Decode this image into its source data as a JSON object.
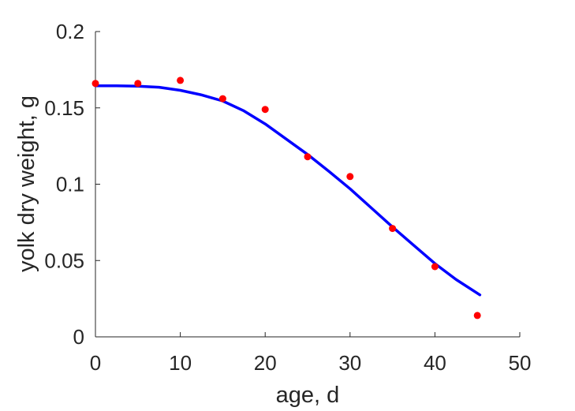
{
  "chart_data": {
    "type": "scatter",
    "title": "",
    "xlabel": "age, d",
    "ylabel": "yolk dry weight, g",
    "xlim": [
      0,
      50
    ],
    "ylim": [
      0,
      0.2
    ],
    "xticks": [
      0,
      10,
      20,
      30,
      40,
      50
    ],
    "xtick_labels": [
      "0",
      "10",
      "20",
      "30",
      "40",
      "50"
    ],
    "yticks": [
      0,
      0.05,
      0.1,
      0.15,
      0.2
    ],
    "ytick_labels": [
      "0",
      "0.05",
      "0.1",
      "0.15",
      "0.2"
    ],
    "grid": false,
    "legend": "none",
    "series": [
      {
        "kind": "scatter",
        "color": "#ff0000",
        "x": [
          0,
          5,
          10,
          15,
          20,
          25,
          30,
          35,
          40,
          45
        ],
        "y": [
          0.166,
          0.166,
          0.168,
          0.156,
          0.149,
          0.118,
          0.105,
          0.071,
          0.046,
          0.014
        ]
      },
      {
        "kind": "line",
        "color": "#0000ff",
        "x": [
          0,
          2.5,
          5,
          7.5,
          10,
          12.5,
          15,
          17.5,
          20,
          22.5,
          25,
          27.5,
          30,
          32.5,
          35,
          37.5,
          40,
          42.5,
          45.3
        ],
        "y": [
          0.1645,
          0.1645,
          0.1642,
          0.1635,
          0.1615,
          0.1585,
          0.1545,
          0.148,
          0.1395,
          0.1295,
          0.1195,
          0.1085,
          0.097,
          0.0845,
          0.072,
          0.06,
          0.048,
          0.0375,
          0.0275
        ]
      }
    ]
  }
}
